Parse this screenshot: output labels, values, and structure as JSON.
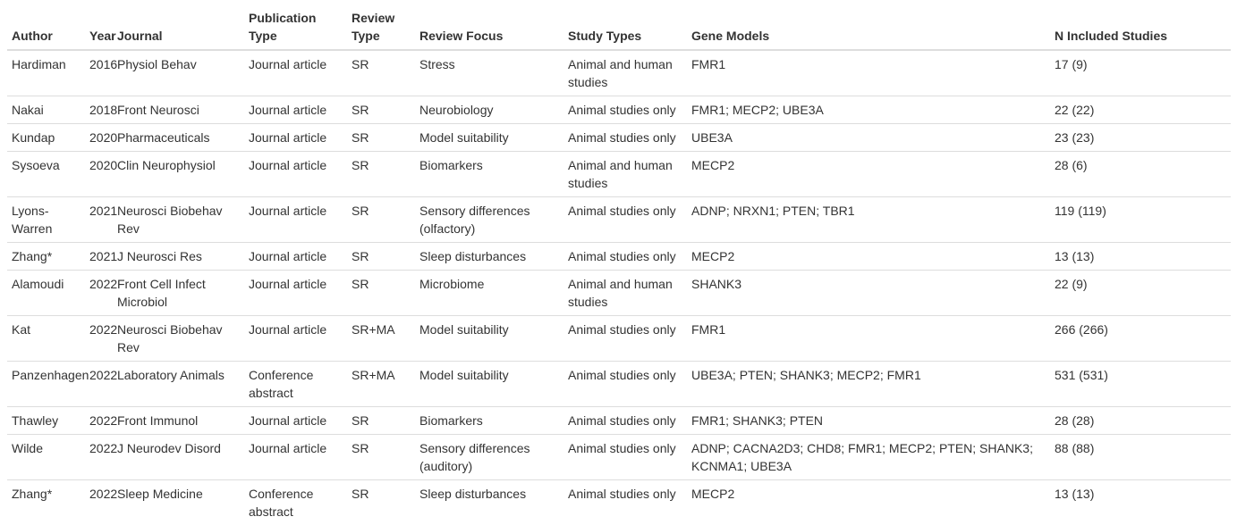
{
  "table": {
    "headers": {
      "author": "Author",
      "year": "Year",
      "journal": "Journal",
      "publication_type": "Publication Type",
      "review_type": "Review Type",
      "review_focus": "Review Focus",
      "study_types": "Study Types",
      "gene_models": "Gene Models",
      "n_included": "N Included Studies"
    },
    "rows": [
      {
        "author": "Hardiman",
        "year": "2016",
        "journal": "Physiol Behav",
        "publication_type": "Journal article",
        "review_type": "SR",
        "review_focus": "Stress",
        "study_types": "Animal and human studies",
        "gene_models": "FMR1",
        "n_included": "17 (9)"
      },
      {
        "author": "Nakai",
        "year": "2018",
        "journal": "Front Neurosci",
        "publication_type": "Journal article",
        "review_type": "SR",
        "review_focus": "Neurobiology",
        "study_types": "Animal studies only",
        "gene_models": "FMR1; MECP2; UBE3A",
        "n_included": "22 (22)"
      },
      {
        "author": "Kundap",
        "year": "2020",
        "journal": "Pharmaceuticals",
        "publication_type": "Journal article",
        "review_type": "SR",
        "review_focus": "Model suitability",
        "study_types": "Animal studies only",
        "gene_models": "UBE3A",
        "n_included": "23 (23)"
      },
      {
        "author": "Sysoeva",
        "year": "2020",
        "journal": "Clin Neurophysiol",
        "publication_type": "Journal article",
        "review_type": "SR",
        "review_focus": "Biomarkers",
        "study_types": "Animal and human studies",
        "gene_models": "MECP2",
        "n_included": "28 (6)"
      },
      {
        "author": "Lyons-Warren",
        "year": "2021",
        "journal": "Neurosci Biobehav Rev",
        "publication_type": "Journal article",
        "review_type": "SR",
        "review_focus": "Sensory differences (olfactory)",
        "study_types": "Animal studies only",
        "gene_models": "ADNP; NRXN1; PTEN; TBR1",
        "n_included": "119 (119)"
      },
      {
        "author": "Zhang*",
        "year": "2021",
        "journal": "J Neurosci Res",
        "publication_type": "Journal article",
        "review_type": "SR",
        "review_focus": "Sleep disturbances",
        "study_types": "Animal studies only",
        "gene_models": "MECP2",
        "n_included": "13 (13)"
      },
      {
        "author": "Alamoudi",
        "year": "2022",
        "journal": "Front Cell Infect Microbiol",
        "publication_type": "Journal article",
        "review_type": "SR",
        "review_focus": "Microbiome",
        "study_types": "Animal and human studies",
        "gene_models": "SHANK3",
        "n_included": "22 (9)"
      },
      {
        "author": "Kat",
        "year": "2022",
        "journal": "Neurosci Biobehav Rev",
        "publication_type": "Journal article",
        "review_type": "SR+MA",
        "review_focus": "Model suitability",
        "study_types": "Animal studies only",
        "gene_models": "FMR1",
        "n_included": "266 (266)"
      },
      {
        "author": "Panzenhagen",
        "year": "2022",
        "journal": "Laboratory Animals",
        "publication_type": "Conference abstract",
        "review_type": "SR+MA",
        "review_focus": "Model suitability",
        "study_types": "Animal studies only",
        "gene_models": "UBE3A; PTEN; SHANK3; MECP2; FMR1",
        "n_included": "531 (531)"
      },
      {
        "author": "Thawley",
        "year": "2022",
        "journal": "Front Immunol",
        "publication_type": "Journal article",
        "review_type": "SR",
        "review_focus": "Biomarkers",
        "study_types": "Animal studies only",
        "gene_models": "FMR1; SHANK3; PTEN",
        "n_included": "28 (28)"
      },
      {
        "author": "Wilde",
        "year": "2022",
        "journal": "J Neurodev Disord",
        "publication_type": "Journal article",
        "review_type": "SR",
        "review_focus": "Sensory differences (auditory)",
        "study_types": "Animal studies only",
        "gene_models": "ADNP; CACNA2D3; CHD8; FMR1; MECP2; PTEN; SHANK3; KCNMA1; UBE3A",
        "n_included": "88 (88)"
      },
      {
        "author": "Zhang*",
        "year": "2022",
        "journal": "Sleep Medicine",
        "publication_type": "Conference abstract",
        "review_type": "SR",
        "review_focus": "Sleep disturbances",
        "study_types": "Animal studies only",
        "gene_models": "MECP2",
        "n_included": "13 (13)"
      }
    ]
  }
}
